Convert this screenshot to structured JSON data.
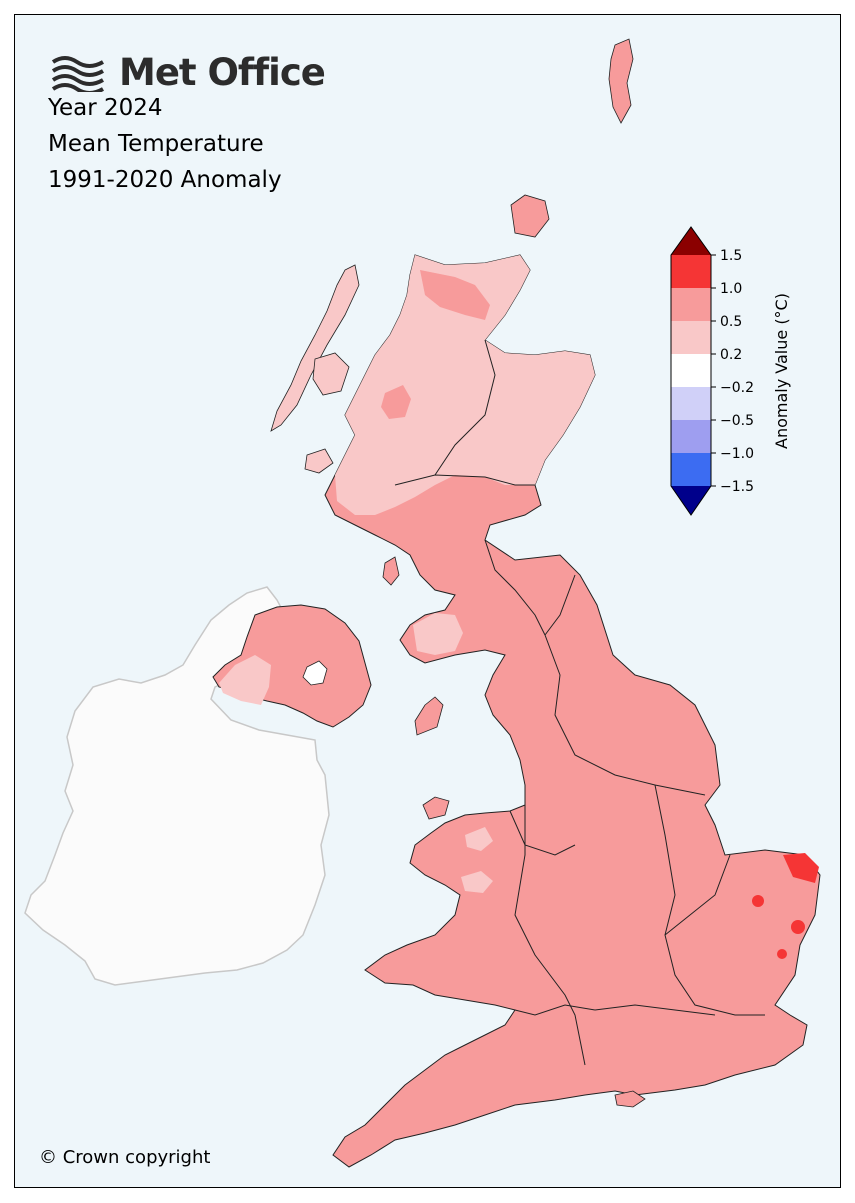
{
  "logo": {
    "text": "Met Office",
    "icon": "met-office-wave-logo"
  },
  "title": {
    "line1": "Year 2024",
    "line2": "Mean Temperature",
    "line3": "1991-2020 Anomaly"
  },
  "colorbar": {
    "label": "Anomaly Value (°C)",
    "ticks": [
      "1.5",
      "1.0",
      "0.5",
      "0.2",
      "−0.2",
      "−0.5",
      "−1.0",
      "−1.5"
    ],
    "colors": {
      "over_1_5": "#8b0000",
      "1_0_to_1_5": "#f53535",
      "0_5_to_1_0": "#f79b9b",
      "0_2_to_0_5": "#f9c8c8",
      "neg0_2_to_0_2": "#ffffff",
      "neg0_5_to_neg0_2": "#d0d0f8",
      "neg1_0_to_neg0_5": "#9e9ef0",
      "neg1_5_to_neg1_0": "#3c6cf2",
      "under_neg1_5": "#00008b"
    }
  },
  "map": {
    "background": "#eef6fa",
    "uk_fill_dominant": "#f79b9b",
    "ireland_fill": "#fbfbfb"
  },
  "copyright": "© Crown copyright"
}
